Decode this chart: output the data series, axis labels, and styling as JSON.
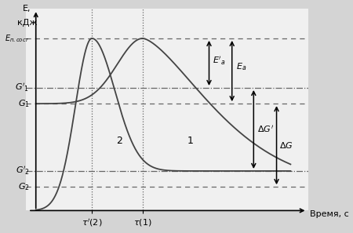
{
  "ylabel": "E,\nкДж",
  "xlabel": "Время, с",
  "y_levels": {
    "E_n_sost": 0.87,
    "G1_prime": 0.62,
    "G1": 0.54,
    "G2_prime": 0.2,
    "G2": 0.12
  },
  "tau1": 0.42,
  "tau2_prime": 0.22,
  "curve_color": "#444444",
  "bg_color": "#d4d4d4",
  "panel_color": "#f0f0f0",
  "line_color": "#666666"
}
